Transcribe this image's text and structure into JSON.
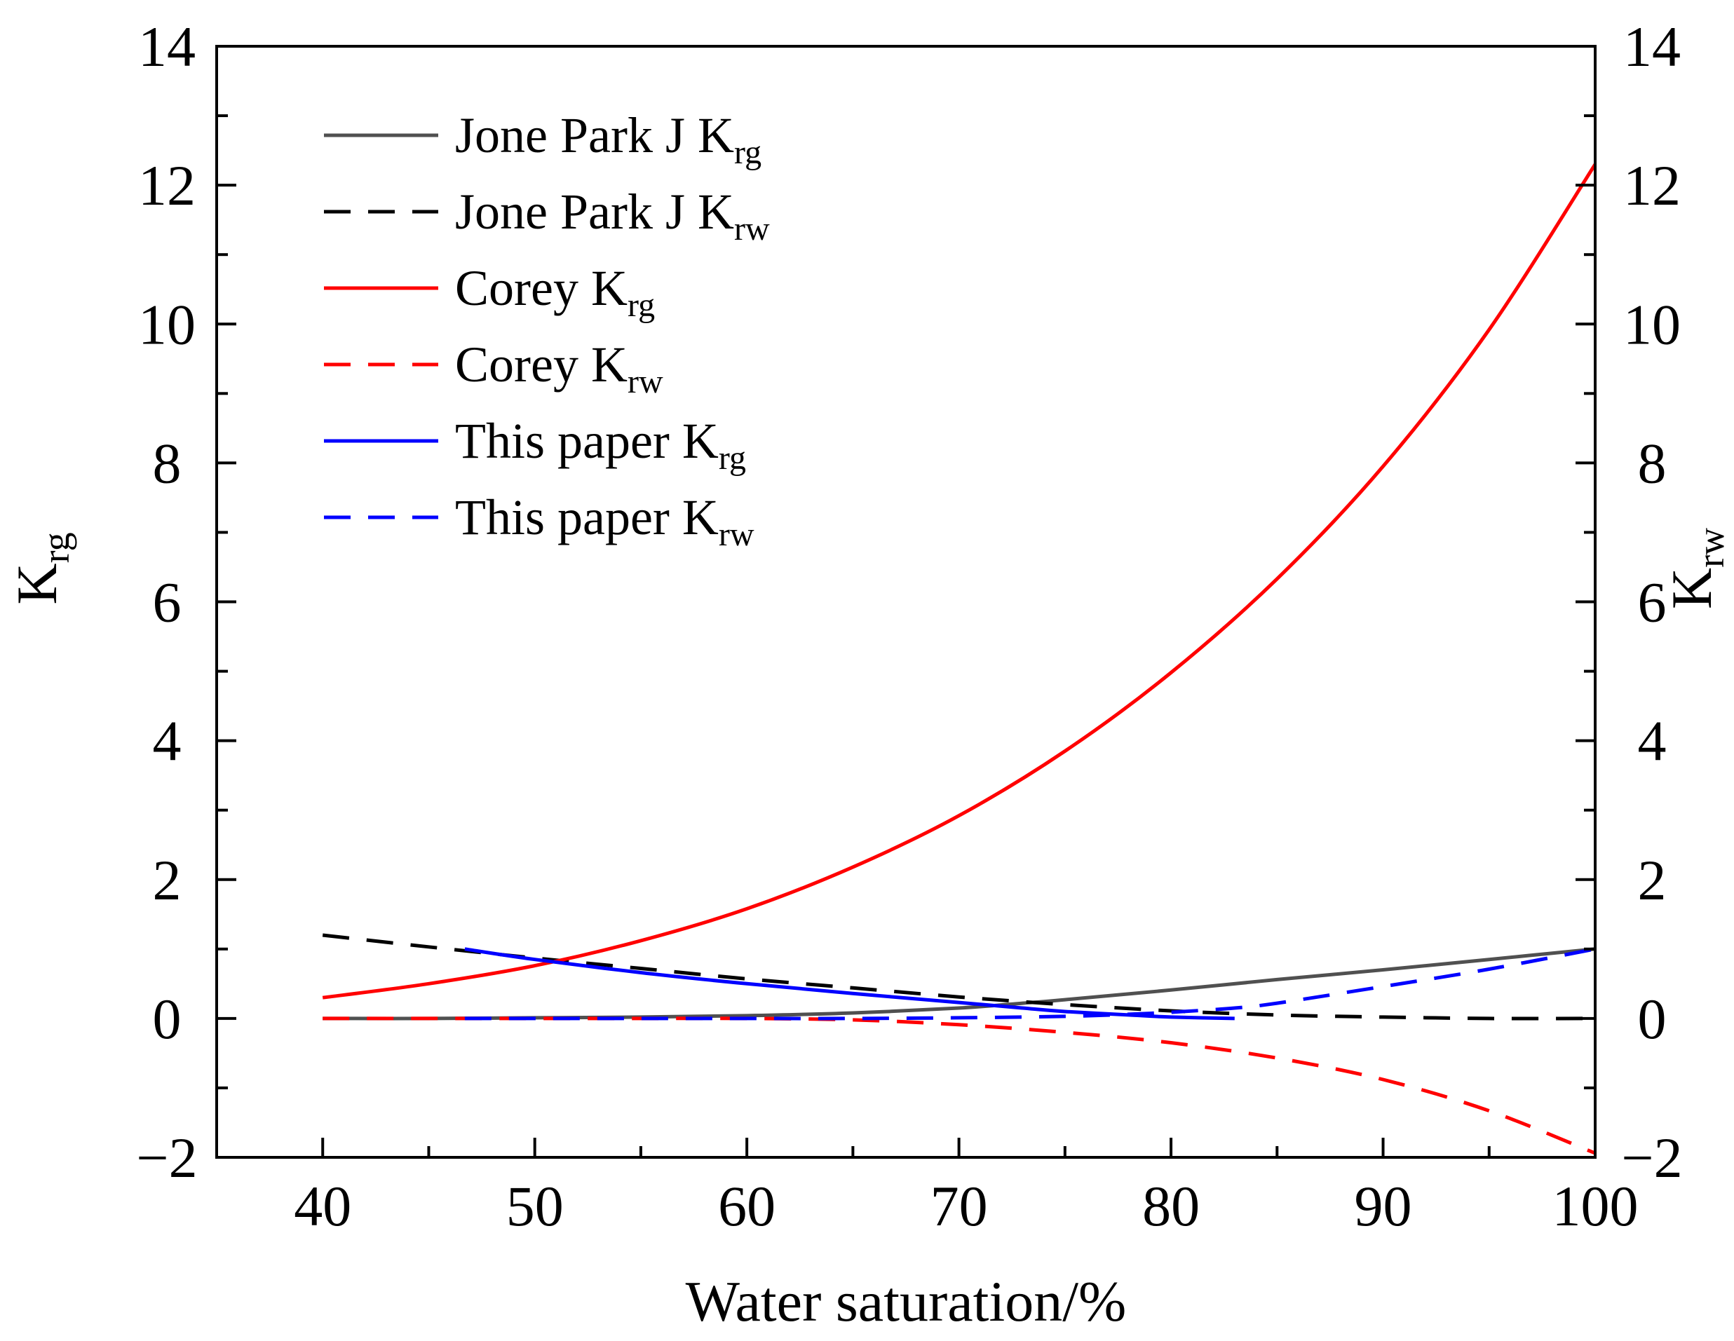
{
  "chart_data": {
    "type": "line",
    "xlabel": "Water saturation/%",
    "ylabel": {
      "main": "K",
      "sub": "rg"
    },
    "y2label": {
      "main": "K",
      "sub": "rw"
    },
    "xlim": [
      35,
      100
    ],
    "ylim": [
      -2,
      14
    ],
    "y2lim": [
      -2,
      14
    ],
    "xticks": [
      40,
      50,
      60,
      70,
      80,
      90,
      100
    ],
    "xtick_labels": [
      "40",
      "50",
      "60",
      "70",
      "80",
      "90",
      "100"
    ],
    "yticks": [
      -2,
      0,
      2,
      4,
      6,
      8,
      10,
      12,
      14
    ],
    "ytick_labels": [
      "−2",
      "0",
      "2",
      "4",
      "6",
      "8",
      "10",
      "12",
      "14"
    ],
    "y2ticks": [
      -2,
      0,
      2,
      4,
      6,
      8,
      10,
      12,
      14
    ],
    "y2tick_labels": [
      "−2",
      "0",
      "2",
      "4",
      "6",
      "8",
      "10",
      "12",
      "14"
    ],
    "grid": false,
    "legend": "top-left",
    "series": [
      {
        "label": "Jone Park J K",
        "sub": "rg",
        "axis": "left",
        "color": "#505050",
        "style": "solid",
        "x": [
          40,
          45,
          50,
          55,
          60,
          65,
          70,
          73,
          75,
          80,
          85,
          90,
          95,
          100
        ],
        "y": [
          0.0,
          0.0,
          0.01,
          0.02,
          0.04,
          0.08,
          0.15,
          0.22,
          0.27,
          0.41,
          0.56,
          0.7,
          0.85,
          1.0
        ]
      },
      {
        "label": "Jone Park J K",
        "sub": "rw",
        "axis": "right",
        "color": "#000000",
        "style": "dashed",
        "x": [
          40,
          45,
          50,
          55,
          60,
          65,
          70,
          75,
          80,
          85,
          90,
          95,
          100
        ],
        "y": [
          1.2,
          1.03,
          0.87,
          0.72,
          0.57,
          0.44,
          0.31,
          0.2,
          0.11,
          0.05,
          0.02,
          0.0,
          0.0
        ]
      },
      {
        "label": "Corey K",
        "sub": "rg",
        "axis": "left",
        "color": "#ff0000",
        "style": "solid",
        "x": [
          40,
          45,
          50,
          55,
          60,
          65,
          70,
          75,
          80,
          85,
          90,
          95,
          100
        ],
        "y": [
          0.3,
          0.5,
          0.76,
          1.12,
          1.58,
          2.18,
          2.92,
          3.85,
          4.98,
          6.33,
          7.95,
          9.92,
          12.3
        ]
      },
      {
        "label": "Corey K",
        "sub": "rw",
        "axis": "right",
        "color": "#ff0000",
        "style": "dashed",
        "x": [
          40,
          45,
          50,
          55,
          60,
          65,
          70,
          75,
          80,
          85,
          90,
          95,
          100
        ],
        "y": [
          0.0,
          0.0,
          0.0,
          0.0,
          0.0,
          -0.02,
          -0.09,
          -0.2,
          -0.35,
          -0.57,
          -0.88,
          -1.33,
          -1.94
        ]
      },
      {
        "label": "This paper K",
        "sub": "rg",
        "axis": "left",
        "color": "#0000ff",
        "style": "solid",
        "x": [
          46.7,
          50,
          55,
          60,
          65,
          70,
          73,
          75,
          78,
          80,
          83
        ],
        "y": [
          1.0,
          0.85,
          0.66,
          0.5,
          0.36,
          0.23,
          0.15,
          0.1,
          0.05,
          0.02,
          0.0
        ]
      },
      {
        "label": "This paper K",
        "sub": "rw",
        "axis": "right",
        "color": "#0000ff",
        "style": "dashed",
        "x": [
          46.7,
          50,
          55,
          60,
          65,
          70,
          75,
          78,
          80,
          83,
          85,
          90,
          95,
          100
        ],
        "y": [
          0.0,
          0.0,
          0.0,
          0.0,
          0.0,
          0.01,
          0.03,
          0.06,
          0.09,
          0.15,
          0.22,
          0.46,
          0.71,
          1.0
        ]
      }
    ]
  }
}
